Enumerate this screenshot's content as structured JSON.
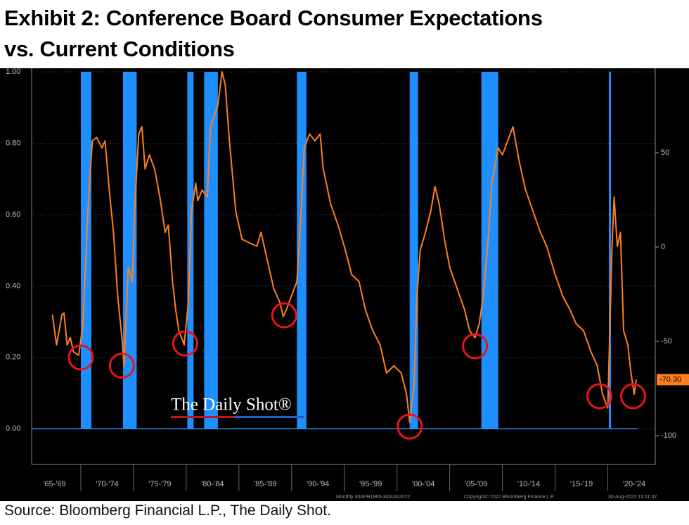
{
  "chart_data": {
    "type": "line",
    "title": [
      "Exhibit 2: Conference Board Consumer Expectations",
      "vs. Current Conditions"
    ],
    "source": "Source: Bloomberg Financial L.P., The Daily Shot.",
    "watermark": "The Daily Shot®",
    "footer": [
      "Monthly 30APR1965-30AUG2022",
      "Copyright© 2022 Bloomberg Finance L.P.",
      "30-Aug-2022 15:11:32"
    ],
    "xlim": [
      1965,
      2024.5
    ],
    "xticks": [
      {
        "value": 1967.5,
        "label": "'65-'69"
      },
      {
        "value": 1972.5,
        "label": "'70-'74"
      },
      {
        "value": 1977.5,
        "label": "'75-'79"
      },
      {
        "value": 1982.5,
        "label": "'80-'84"
      },
      {
        "value": 1987.5,
        "label": "'85-'89"
      },
      {
        "value": 1992.5,
        "label": "'90-'94"
      },
      {
        "value": 1997.5,
        "label": "'95-'99"
      },
      {
        "value": 2002.5,
        "label": "'00-'04"
      },
      {
        "value": 2007.5,
        "label": "'05-'09"
      },
      {
        "value": 2012.5,
        "label": "'10-'14"
      },
      {
        "value": 2017.5,
        "label": "'15-'19"
      },
      {
        "value": 2022.5,
        "label": "'20-'24"
      }
    ],
    "ylim": [
      -0.1,
      1.01
    ],
    "yticks": [
      {
        "value": 0,
        "label": "0.00"
      },
      {
        "value": 0.2,
        "label": "0.20"
      },
      {
        "value": 0.4,
        "label": "0.40"
      },
      {
        "value": 0.6,
        "label": "0.60"
      },
      {
        "value": 0.8,
        "label": "0.80"
      },
      {
        "value": 1,
        "label": "1.00"
      }
    ],
    "y2lim": [
      -115.3,
      94.8
    ],
    "y2ticks": [
      -100,
      -50,
      0,
      50
    ],
    "grid": true,
    "recessions": {
      "color": "#1e8fff",
      "starts": [
        1970.0,
        1974.0,
        1980.1,
        1981.7,
        1990.5,
        2001.2,
        2008.0,
        2020.1
      ],
      "ends": [
        1971.0,
        1975.3,
        1980.7,
        1983.0,
        1991.4,
        2002.0,
        2009.6,
        2020.3
      ],
      "values": [
        1,
        1,
        1,
        1,
        1,
        1,
        1,
        1
      ]
    },
    "series": [
      {
        "color": "#ff7f1e",
        "axis": "y2",
        "x": [
          1967.3,
          1967.7,
          1968.2,
          1968.4,
          1968.7,
          1969.0,
          1969.3,
          1969.8,
          1970.2,
          1970.7,
          1971.1,
          1971.5,
          1972.0,
          1972.3,
          1972.7,
          1973.1,
          1973.5,
          1973.9,
          1974.1,
          1974.3,
          1974.5,
          1974.9,
          1975.1,
          1975.5,
          1975.8,
          1976.1,
          1976.5,
          1977.0,
          1977.5,
          1978.0,
          1978.3,
          1978.7,
          1979.0,
          1979.3,
          1979.8,
          1980.2,
          1980.5,
          1980.9,
          1981.1,
          1981.5,
          1982.0,
          1982.3,
          1983.0,
          1983.4,
          1983.7,
          1984.1,
          1984.7,
          1985.3,
          1986.0,
          1986.7,
          1987.1,
          1987.7,
          1988.3,
          1988.9,
          1989.2,
          1989.5,
          1990.0,
          1990.5,
          1990.9,
          1991.2,
          1991.7,
          1992.2,
          1992.7,
          1993.0,
          1993.7,
          1994.4,
          1995.0,
          1995.7,
          1996.4,
          1997.0,
          1997.7,
          1998.4,
          1999.0,
          1999.7,
          2000.4,
          2000.9,
          2001.2,
          2001.6,
          2001.9,
          2002.2,
          2002.7,
          2003.2,
          2003.6,
          2004.0,
          2004.5,
          2005.0,
          2005.7,
          2006.4,
          2006.9,
          2007.4,
          2007.8,
          2008.2,
          2008.7,
          2009.0,
          2009.6,
          2010.0,
          2010.5,
          2011.0,
          2011.6,
          2012.2,
          2012.9,
          2013.6,
          2014.2,
          2015.0,
          2015.7,
          2016.4,
          2017.0,
          2017.7,
          2018.4,
          2019.0,
          2019.5,
          2020.0,
          2020.4,
          2020.6,
          2020.9,
          2021.2,
          2021.5,
          2021.9,
          2022.2,
          2022.5,
          2022.7
        ],
        "values": [
          -35.8,
          -51.9,
          -35.8,
          -35,
          -51.9,
          -48,
          -55.6,
          -57.4,
          -40.7,
          22.8,
          56.3,
          58.2,
          52.6,
          56.3,
          30.2,
          7.8,
          -25.7,
          -48.1,
          -63,
          -36.9,
          -10.8,
          -18.3,
          19,
          60,
          63.8,
          41.4,
          48.9,
          41.4,
          26.5,
          7.8,
          11.6,
          -18.3,
          -33.2,
          -44.4,
          -51.9,
          -29.5,
          19,
          33.9,
          24.6,
          30.2,
          26.5,
          63.8,
          75,
          92.9,
          86.2,
          56.3,
          19,
          4.1,
          2.2,
          0.4,
          7.8,
          -7.1,
          -22,
          -29.5,
          -36.9,
          -33.2,
          -25.7,
          -18.3,
          19,
          52.6,
          60,
          56.3,
          60,
          41.4,
          22.8,
          11.6,
          0.4,
          -14.6,
          -18.3,
          -33.2,
          -44.4,
          -51.9,
          -66.8,
          -63,
          -66.8,
          -78,
          -92.9,
          -74.2,
          -25.7,
          -1.5,
          7.8,
          19,
          32.1,
          22.8,
          4.1,
          -10.8,
          -22,
          -33.2,
          -44.4,
          -48.1,
          -40.7,
          -25.7,
          7.8,
          33.9,
          52.6,
          48.9,
          56.3,
          63.8,
          45.2,
          30.2,
          19,
          7.8,
          0.4,
          -14.6,
          -25.7,
          -33.2,
          -40.7,
          -44.4,
          -55.6,
          -63,
          -78,
          -85.4,
          0.4,
          26.5,
          0.4,
          7.8,
          -44.4,
          -51.9,
          -66.8,
          -78,
          -70.3
        ]
      }
    ],
    "last_value": {
      "value": -70.3,
      "label": "-70.30"
    },
    "highlights": {
      "color": "#e8141b",
      "x": [
        1970.0,
        1973.9,
        1979.9,
        1989.3,
        2001.2,
        2007.4,
        2019.2,
        2022.4
      ],
      "y": [
        -58.6,
        -62.9,
        -51.1,
        -36.2,
        -95.2,
        -52.6,
        -79.1,
        -79.1
      ]
    }
  }
}
